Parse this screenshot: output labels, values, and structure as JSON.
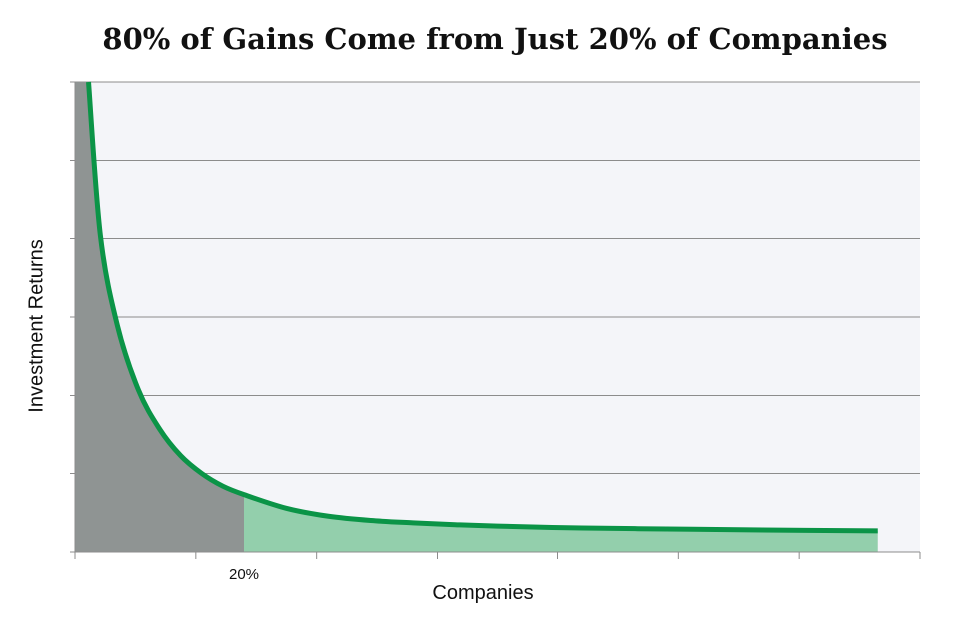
{
  "chart_data": {
    "type": "area",
    "title": "80% of Gains Come from Just 20% of Companies",
    "xlabel": "Companies",
    "ylabel": "Investment Returns",
    "xlim": [
      0,
      100
    ],
    "ylim": [
      0,
      100
    ],
    "grid": true,
    "legend": "none",
    "highlight": {
      "x_end": 20,
      "label": "20%"
    },
    "x_ticks": [
      0,
      14.3,
      28.6,
      42.9,
      57.1,
      71.4,
      85.7,
      100
    ],
    "y_ticks": [
      0,
      16.7,
      33.3,
      50,
      66.7,
      83.3,
      100
    ],
    "series": [
      {
        "x": [
          1.6,
          3,
          5,
          7.5,
          10,
          12.5,
          15,
          17.5,
          20,
          25,
          30,
          35,
          40,
          45,
          50,
          60,
          70,
          80,
          95
        ],
        "y": [
          100,
          67.4,
          48.3,
          34.5,
          26.2,
          20.5,
          16.7,
          14.0,
          12.2,
          9.3,
          7.6,
          6.7,
          6.2,
          5.8,
          5.5,
          5.1,
          4.9,
          4.7,
          4.5
        ]
      }
    ],
    "colors": {
      "curve": "#0b9447",
      "highlight_fill": "#8f9493",
      "rest_fill": "#93cfac",
      "plot_bg": "#f4f5f9",
      "grid": "#8c8c8c"
    }
  }
}
